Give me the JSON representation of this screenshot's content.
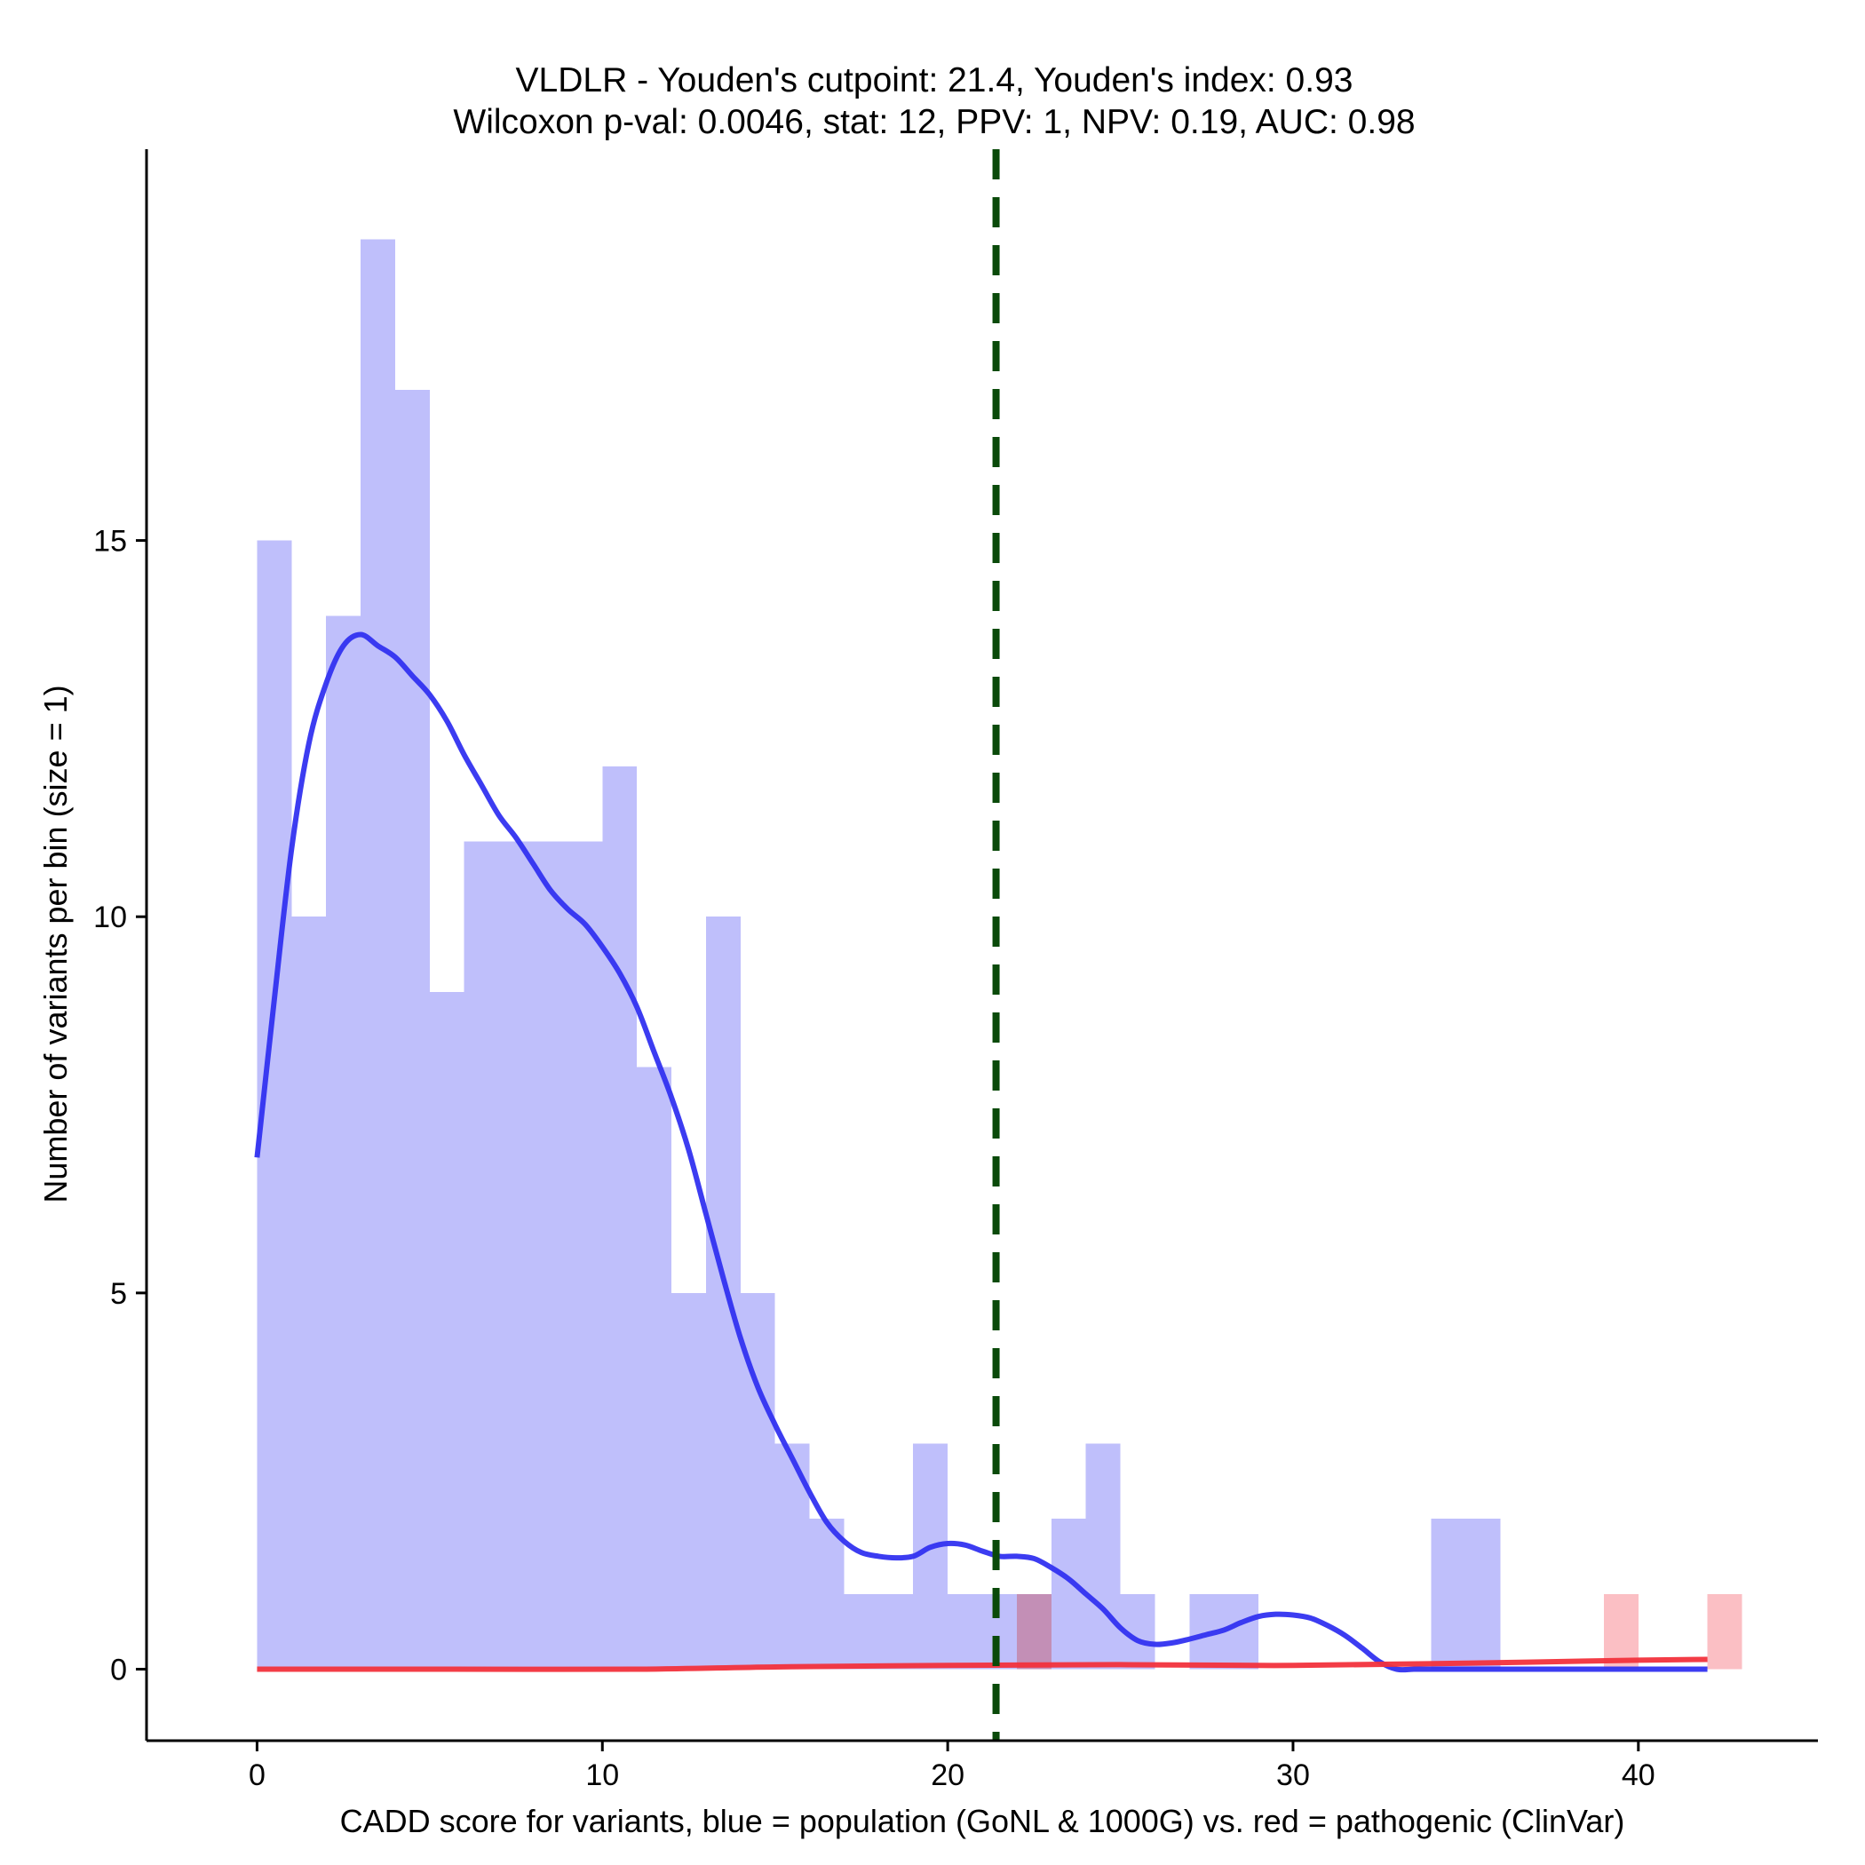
{
  "chart_data": {
    "type": "histogram",
    "title": "VLDLR - Youden's cutpoint: 21.4, Youden's index: 0.93",
    "subtitle": "Wilcoxon p-val: 0.0046, stat: 12, PPV: 1, NPV: 0.19, AUC: 0.98",
    "xlabel": "CADD score for variants, blue = population (GoNL & 1000G) vs. red = pathogenic (ClinVar)",
    "ylabel": "Number of variants per bin (size = 1)",
    "xlim": [
      -3.2,
      45.2
    ],
    "ylim": [
      -0.95,
      20.2
    ],
    "x_ticks": [
      0,
      10,
      20,
      30,
      40
    ],
    "y_ticks": [
      0,
      5,
      10,
      15
    ],
    "bin_width": 1,
    "cutpoint": 21.4,
    "colors": {
      "population_bar": "#bfbffb",
      "pathogenic_bar": "#fbbfc4",
      "overlap_bar": "#c38fb6",
      "population_line": "#3232f0",
      "pathogenic_line": "#f2323c",
      "cutpoint_line": "#0a4a0a"
    },
    "series": [
      {
        "name": "population (GoNL & 1000G)",
        "bin_starts": [
          0,
          1,
          2,
          3,
          4,
          5,
          6,
          7,
          8,
          9,
          10,
          11,
          12,
          13,
          14,
          15,
          16,
          17,
          18,
          19,
          20,
          21,
          22,
          23,
          24,
          25,
          26,
          27,
          28,
          29,
          30,
          31,
          32,
          33,
          34,
          35,
          36,
          37,
          38,
          39,
          40,
          41,
          42
        ],
        "counts": [
          15,
          10,
          14,
          19,
          17,
          9,
          11,
          11,
          11,
          11,
          12,
          8,
          5,
          10,
          5,
          3,
          2,
          1,
          1,
          3,
          1,
          1,
          1,
          2,
          3,
          1,
          0,
          1,
          1,
          0,
          0,
          0,
          0,
          0,
          2,
          2,
          0,
          0,
          0,
          0,
          0,
          0,
          0
        ],
        "density_curve": {
          "x": [
            0,
            0.5,
            1,
            1.5,
            2,
            2.5,
            3,
            3.5,
            4,
            4.5,
            5,
            5.5,
            6,
            6.5,
            7,
            7.5,
            8,
            8.5,
            9,
            9.5,
            10,
            10.5,
            11,
            11.5,
            12,
            12.5,
            13,
            13.5,
            14,
            14.5,
            15,
            15.5,
            16,
            16.5,
            17,
            17.5,
            18,
            18.5,
            19,
            19.5,
            20,
            20.5,
            21,
            21.5,
            22,
            22.5,
            23,
            23.5,
            24,
            24.5,
            25,
            25.5,
            26,
            26.5,
            27,
            27.5,
            28,
            28.5,
            29,
            29.5,
            30,
            30.5,
            31,
            31.5,
            32,
            32.5,
            33,
            33.5,
            34,
            34.5,
            35,
            35.5,
            36,
            36.5,
            37,
            37.5,
            38,
            38.5,
            39,
            39.5,
            40,
            40.5,
            41,
            41.5,
            42
          ],
          "y": [
            6.8,
            8.9,
            10.9,
            12.3,
            13.1,
            13.6,
            13.75,
            13.6,
            13.45,
            13.2,
            12.95,
            12.6,
            12.15,
            11.75,
            11.35,
            11.05,
            10.7,
            10.35,
            10.1,
            9.9,
            9.6,
            9.25,
            8.8,
            8.2,
            7.6,
            6.9,
            6.05,
            5.2,
            4.4,
            3.75,
            3.25,
            2.8,
            2.35,
            1.95,
            1.7,
            1.55,
            1.5,
            1.48,
            1.5,
            1.62,
            1.67,
            1.65,
            1.57,
            1.5,
            1.5,
            1.47,
            1.35,
            1.2,
            1.0,
            0.8,
            0.55,
            0.38,
            0.33,
            0.35,
            0.4,
            0.46,
            0.52,
            0.62,
            0.7,
            0.73,
            0.72,
            0.68,
            0.58,
            0.45,
            0.28,
            0.1,
            0,
            0,
            0,
            0,
            0,
            0,
            0,
            0,
            0,
            0,
            0,
            0,
            0,
            0,
            0,
            0,
            0,
            0,
            0
          ]
        }
      },
      {
        "name": "pathogenic (ClinVar)",
        "bin_starts": [
          22,
          39,
          42
        ],
        "counts": [
          1,
          1,
          1
        ],
        "density_curve": {
          "x": [
            0,
            5,
            11,
            15,
            20,
            25,
            30,
            35,
            40,
            42
          ],
          "y": [
            0,
            0,
            0,
            0.03,
            0.05,
            0.06,
            0.05,
            0.08,
            0.12,
            0.13
          ]
        }
      }
    ]
  }
}
